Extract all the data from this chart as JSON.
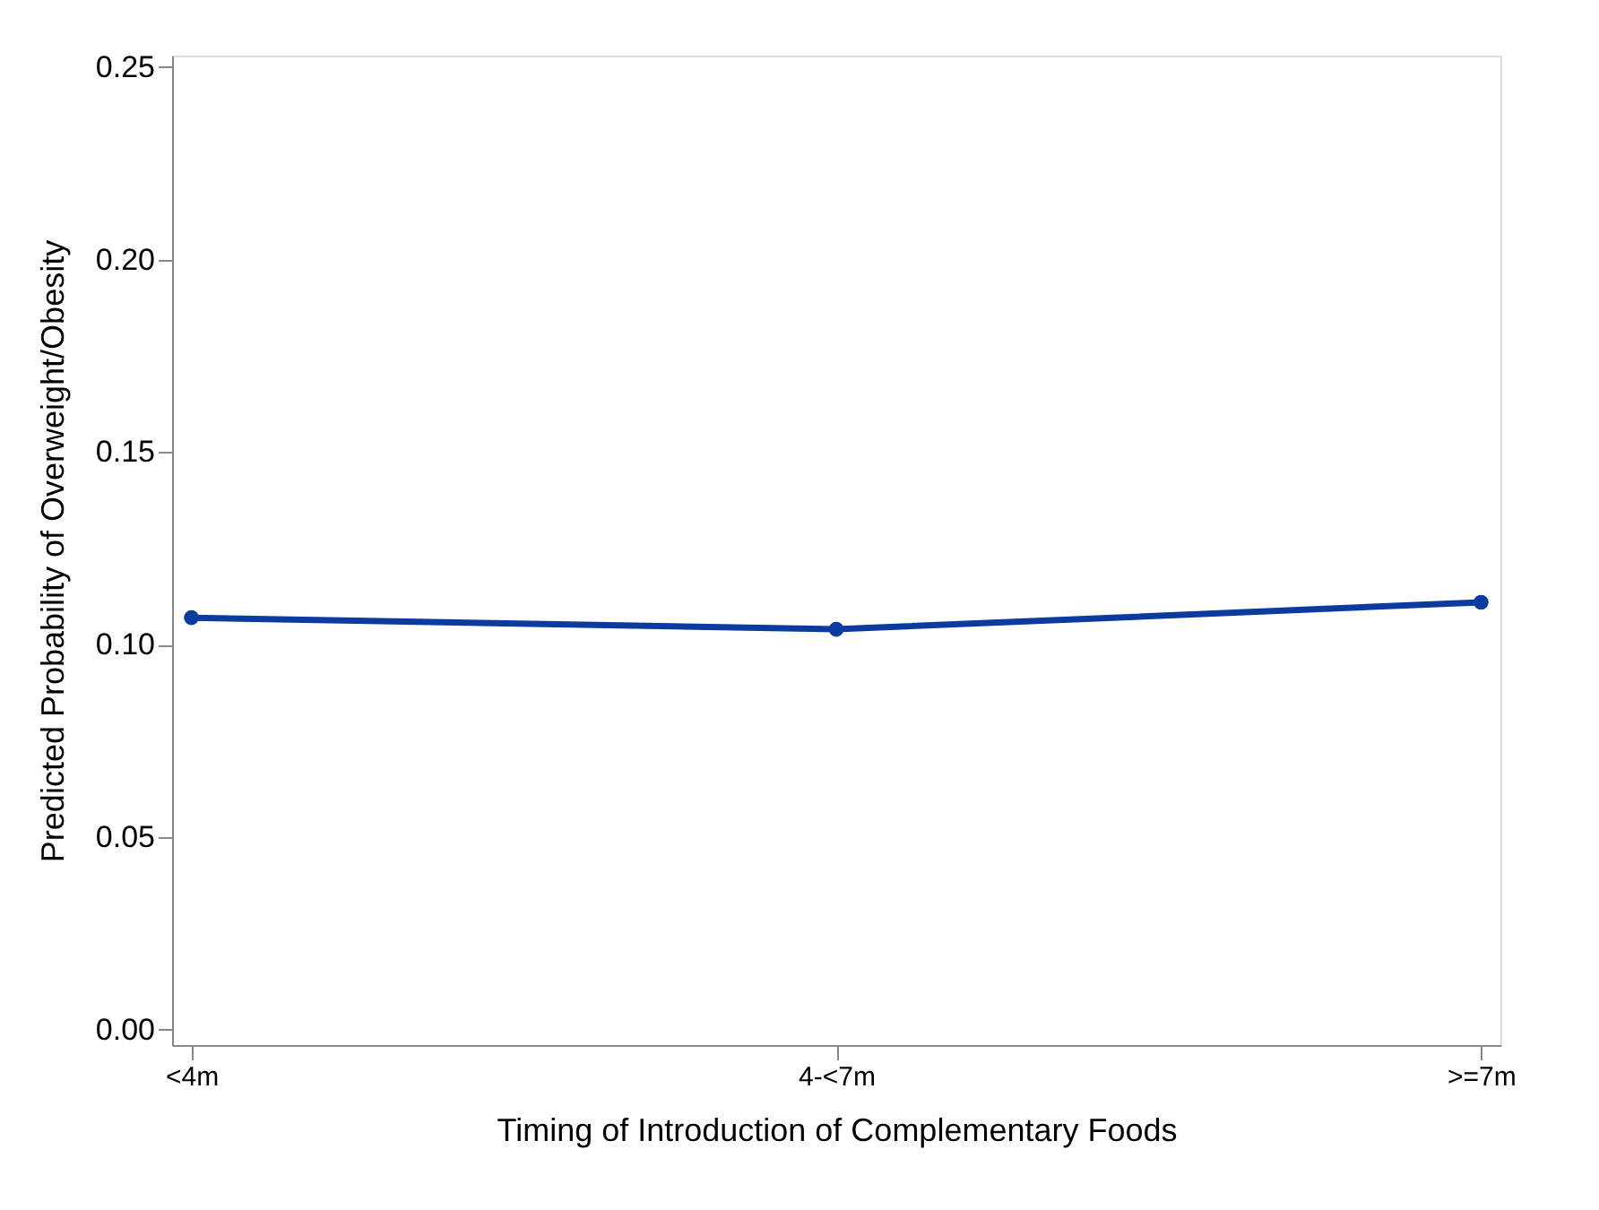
{
  "chart_data": {
    "type": "line",
    "xlabel": "Timing of Introduction of Complementary Foods",
    "ylabel": "Predicted Probability of Overweight/Obesity",
    "categories": [
      "<4m",
      "4-<7m",
      ">=7m"
    ],
    "series": [
      {
        "color": "#0b3b9e",
        "values": [
          0.107,
          0.104,
          0.111
        ]
      }
    ],
    "ylim": [
      -0.004,
      0.253
    ],
    "yticks": [
      {
        "value": 0,
        "label": "0.00"
      },
      0.05,
      {
        "value": 0.1,
        "label": "0.10"
      },
      0.15,
      {
        "value": 0.2,
        "label": "0.20"
      },
      0.25
    ],
    "grid": false,
    "legend": false,
    "marker": "circle",
    "line_style": "solid"
  }
}
